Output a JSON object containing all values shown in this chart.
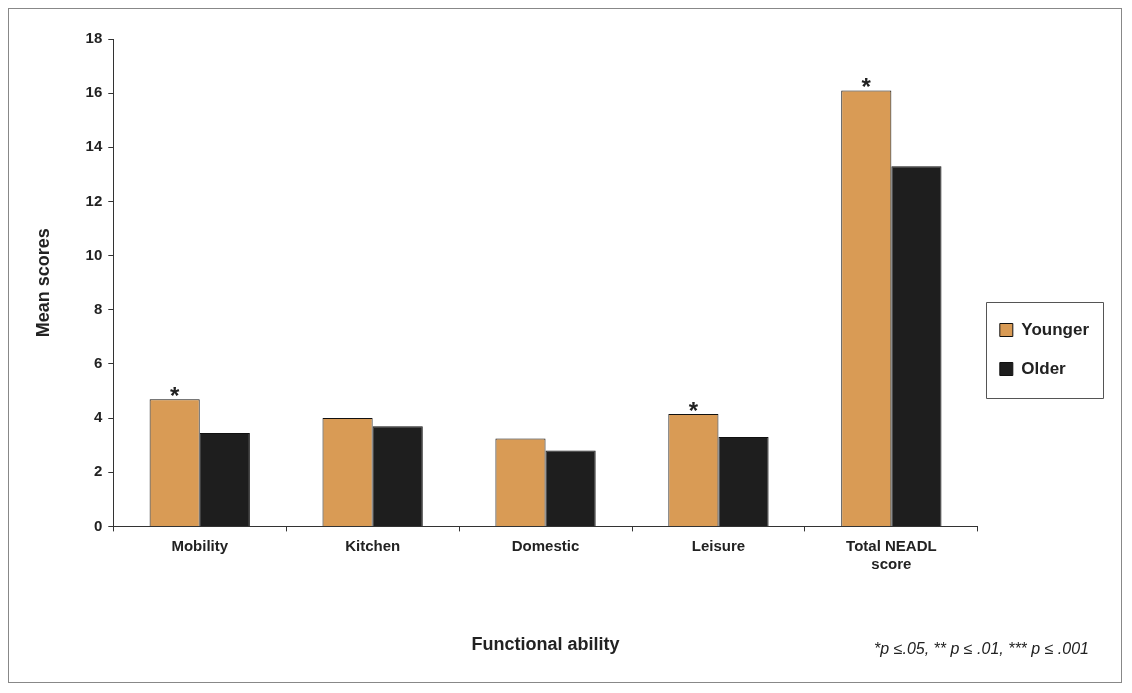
{
  "chart_data": {
    "type": "bar",
    "xlabel": "Functional ability",
    "ylabel": "Mean scores",
    "categories": [
      "Mobility",
      "Kitchen",
      "Domestic",
      "Leisure",
      "Total NEADL score"
    ],
    "series": [
      {
        "name": "Younger",
        "color": "#d99b55",
        "values": [
          4.7,
          4.0,
          3.25,
          4.15,
          16.1
        ]
      },
      {
        "name": "Older",
        "color": "#1e1e1e",
        "values": [
          3.45,
          3.7,
          2.8,
          3.3,
          13.3
        ]
      }
    ],
    "ylim": [
      0,
      18
    ],
    "yticks": [
      0,
      2,
      4,
      6,
      8,
      10,
      12,
      14,
      16,
      18
    ],
    "grid": false,
    "legend": "right",
    "annotations": [
      {
        "text": "*",
        "x": "Mobility",
        "y": 4.7
      },
      {
        "text": "*",
        "x": "Leisure",
        "y": 4.15
      },
      {
        "text": "*",
        "x": "Total NEADL score",
        "y": 16.1
      },
      "*p ≤.05, ** p ≤ .01, *** p ≤ .001"
    ]
  }
}
